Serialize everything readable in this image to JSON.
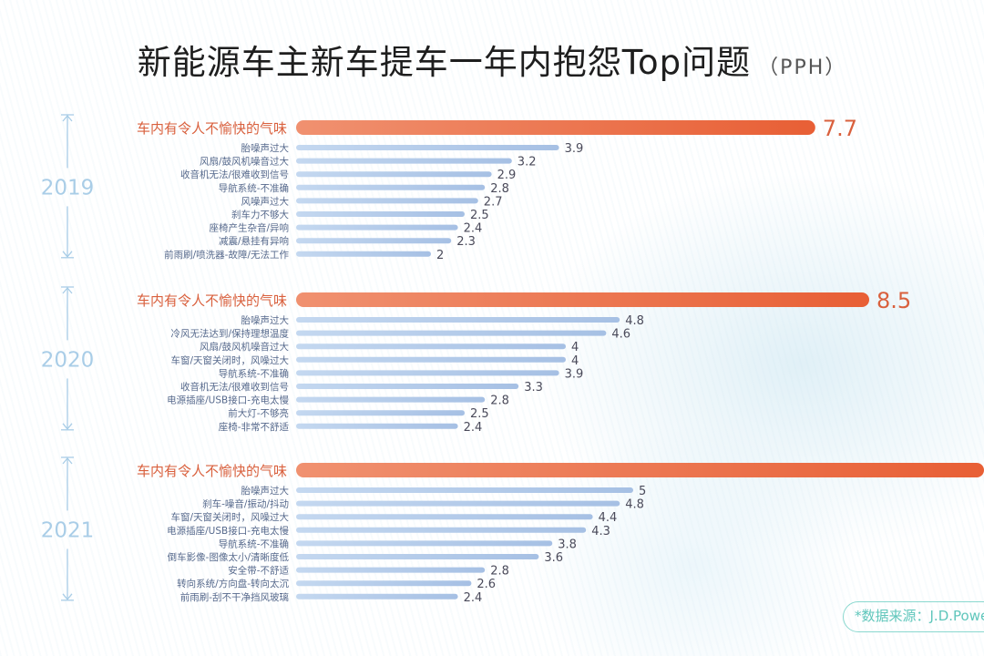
{
  "title": "新能源车主新车提车一年内抱怨Top问题",
  "subtitle": "（PPH）",
  "source": "*数据来源：J.D.Power",
  "colors": {
    "highlight_text": "#d9603d",
    "highlight_bar_start": "#f09170",
    "highlight_bar_end": "#e85f35",
    "bar_start": "#c4d8f0",
    "bar_end": "#a6c0e4",
    "label": "#56698c",
    "value": "#4a4a5a",
    "year": "#a9cde7"
  },
  "chart_data": {
    "type": "bar",
    "orientation": "horizontal",
    "xlabel": "",
    "ylabel": "",
    "groups": [
      {
        "year": "2019",
        "categories": [
          "车内有令人不愉快的气味",
          "胎噪声过大",
          "风扇/鼓风机噪音过大",
          "收音机无法/很难收到信号",
          "导航系统-不准确",
          "风噪声过大",
          "刹车力不够大",
          "座椅产生杂音/异响",
          "减震/悬挂有异响",
          "前雨刷/喷洗器-故障/无法工作"
        ],
        "values": [
          7.7,
          3.9,
          3.2,
          2.9,
          2.8,
          2.7,
          2.5,
          2.4,
          2.3,
          2
        ]
      },
      {
        "year": "2020",
        "categories": [
          "车内有令人不愉快的气味",
          "胎噪声过大",
          "冷风无法达到/保持理想温度",
          "风扇/鼓风机噪音过大",
          "车窗/天窗关闭时，风噪过大",
          "导航系统-不准确",
          "收音机无法/很难收到信号",
          "电源插座/USB接口-充电太慢",
          "前大灯-不够亮",
          "座椅-非常不舒适"
        ],
        "values": [
          8.5,
          4.8,
          4.6,
          4,
          4,
          3.9,
          3.3,
          2.8,
          2.5,
          2.4
        ]
      },
      {
        "year": "2021",
        "categories": [
          "车内有令人不愉快的气味",
          "胎噪声过大",
          "刹车-噪音/振动/抖动",
          "车窗/天窗关闭时，风噪过大",
          "电源插座/USB接口-充电太慢",
          "导航系统-不准确",
          "倒车影像-图像太小/清晰度低",
          "安全带-不舒适",
          "转向系统/方向盘-转向太沉",
          "前雨刷-刮不干净挡风玻璃"
        ],
        "values": [
          null,
          5,
          4.8,
          4.4,
          4.3,
          3.8,
          3.6,
          2.8,
          2.6,
          2.4
        ]
      }
    ]
  }
}
